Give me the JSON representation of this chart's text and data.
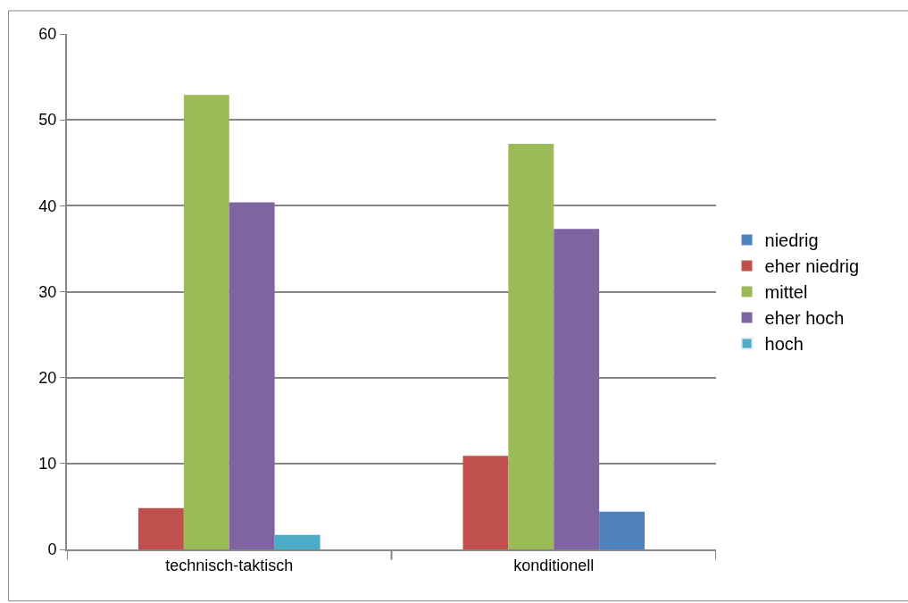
{
  "chart_data": {
    "type": "bar",
    "categories": [
      "technisch-taktisch",
      "konditionell"
    ],
    "series": [
      {
        "name": "niedrig",
        "color": "#4f81bd",
        "values": [
          null,
          null
        ]
      },
      {
        "name": "eher niedrig",
        "color": "#c0504d",
        "values": [
          4.8,
          10.9
        ]
      },
      {
        "name": "mittel",
        "color": "#9bbb59",
        "values": [
          52.9,
          47.2
        ]
      },
      {
        "name": "eher hoch",
        "color": "#8064a2",
        "values": [
          40.4,
          37.3
        ]
      },
      {
        "name": "hoch",
        "color": "#4bacc6",
        "colors": [
          "#4bacc6",
          "#4f81bd"
        ],
        "values": [
          1.7,
          4.4
        ]
      }
    ],
    "ylim": [
      0,
      60
    ],
    "yticks": [
      0,
      10,
      20,
      30,
      40,
      50,
      60
    ],
    "grid": "y",
    "legend": "right"
  }
}
